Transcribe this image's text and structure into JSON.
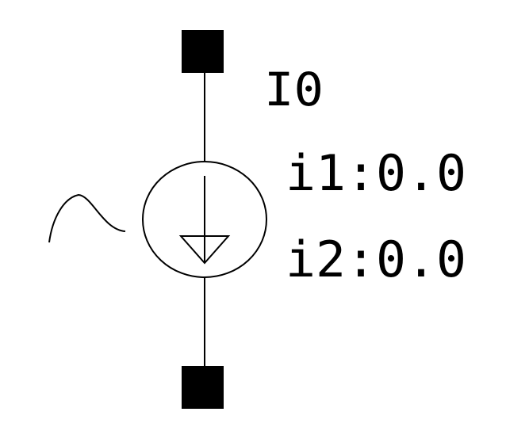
{
  "component": {
    "instance_name": "I0",
    "params": [
      {
        "label": "i1:0.0"
      },
      {
        "label": "i2:0.0"
      }
    ],
    "symbol": "pwl-current-source",
    "colors": {
      "background": "#ffffff",
      "stroke": "#000000"
    }
  }
}
